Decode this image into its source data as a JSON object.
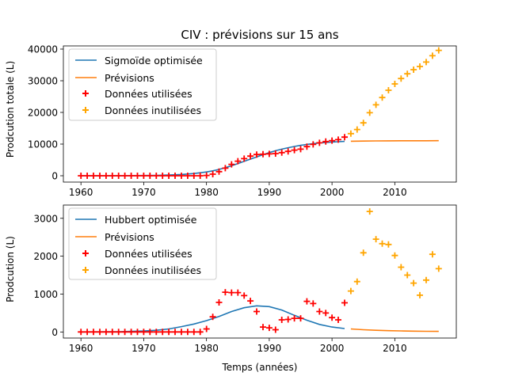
{
  "chart_data": [
    {
      "type": "line",
      "title": "CIV : prévisions sur 15 ans",
      "xlabel": "",
      "ylabel": "Prodcution totale (L)",
      "xlim": [
        1957.2,
        2019.8
      ],
      "ylim": [
        -2000,
        41000
      ],
      "xticks": [
        1960,
        1970,
        1980,
        1990,
        2000,
        2010
      ],
      "yticks": [
        0,
        10000,
        20000,
        30000,
        40000
      ],
      "legend_position": "upper-left",
      "colors": {
        "fit": "#1f77b4",
        "forecast": "#ff7f0e",
        "used": "#ff0000",
        "unused": "#ffa500"
      },
      "series": [
        {
          "name": "Sigmoïde optimisée",
          "kind": "line",
          "x": [
            1960,
            1962,
            1964,
            1966,
            1968,
            1970,
            1972,
            1974,
            1976,
            1978,
            1980,
            1981,
            1982,
            1983,
            1984,
            1985,
            1986,
            1987,
            1988,
            1989,
            1990,
            1991,
            1992,
            1993,
            1994,
            1995,
            1996,
            1997,
            1998,
            1999,
            2000,
            2001,
            2002
          ],
          "y": [
            0,
            5,
            10,
            20,
            40,
            70,
            130,
            230,
            400,
            700,
            1200,
            1550,
            2000,
            2550,
            3150,
            3850,
            4550,
            5250,
            5950,
            6650,
            7300,
            7900,
            8400,
            8850,
            9250,
            9600,
            9900,
            10150,
            10350,
            10500,
            10650,
            10750,
            10850
          ]
        },
        {
          "name": "Prévisions",
          "kind": "line",
          "x": [
            2003,
            2005,
            2007,
            2009,
            2011,
            2013,
            2015,
            2017
          ],
          "y": [
            10900,
            10950,
            11000,
            11020,
            11040,
            11050,
            11060,
            11070
          ]
        },
        {
          "name": "Données utilisées",
          "kind": "scatter",
          "x": [
            1960,
            1961,
            1962,
            1963,
            1964,
            1965,
            1966,
            1967,
            1968,
            1969,
            1970,
            1971,
            1972,
            1973,
            1974,
            1975,
            1976,
            1977,
            1978,
            1979,
            1980,
            1981,
            1982,
            1983,
            1984,
            1985,
            1986,
            1987,
            1988,
            1989,
            1990,
            1991,
            1992,
            1993,
            1994,
            1995,
            1996,
            1997,
            1998,
            1999,
            2000,
            2001,
            2002
          ],
          "y": [
            0,
            0,
            0,
            0,
            0,
            0,
            0,
            0,
            0,
            0,
            0,
            0,
            0,
            0,
            0,
            0,
            0,
            0,
            0,
            0,
            100,
            500,
            1300,
            2400,
            3600,
            4600,
            5400,
            6200,
            6700,
            6800,
            6900,
            7000,
            7300,
            7700,
            8100,
            8400,
            9200,
            9900,
            10400,
            10800,
            11100,
            11400,
            12200
          ]
        },
        {
          "name": "Données inutilisées",
          "kind": "scatter",
          "x": [
            2003,
            2004,
            2005,
            2006,
            2007,
            2008,
            2009,
            2010,
            2011,
            2012,
            2013,
            2014,
            2015,
            2016,
            2017
          ],
          "y": [
            13300,
            14600,
            16700,
            19900,
            22400,
            24700,
            27000,
            29000,
            30700,
            32200,
            33500,
            34500,
            35900,
            37900,
            39600
          ]
        }
      ]
    },
    {
      "type": "line",
      "title": "",
      "xlabel": "Temps (années)",
      "ylabel": "Prodcution (L)",
      "xlim": [
        1957.2,
        2019.8
      ],
      "ylim": [
        -160,
        3350
      ],
      "xticks": [
        1960,
        1970,
        1980,
        1990,
        2000,
        2010
      ],
      "yticks": [
        0,
        1000,
        2000,
        3000
      ],
      "legend_position": "upper-left",
      "colors": {
        "fit": "#1f77b4",
        "forecast": "#ff7f0e",
        "used": "#ff0000",
        "unused": "#ffa500"
      },
      "series": [
        {
          "name": "Hubbert optimisée",
          "kind": "line",
          "x": [
            1960,
            1962,
            1964,
            1966,
            1968,
            1970,
            1972,
            1974,
            1976,
            1978,
            1980,
            1982,
            1984,
            1986,
            1988,
            1990,
            1992,
            1994,
            1996,
            1998,
            2000,
            2002
          ],
          "y": [
            0,
            2,
            5,
            8,
            15,
            25,
            45,
            80,
            140,
            210,
            300,
            410,
            540,
            640,
            690,
            670,
            580,
            440,
            310,
            200,
            130,
            90
          ]
        },
        {
          "name": "Prévisions",
          "kind": "line",
          "x": [
            2003,
            2005,
            2007,
            2009,
            2011,
            2013,
            2015,
            2017
          ],
          "y": [
            80,
            60,
            45,
            35,
            28,
            22,
            18,
            15
          ]
        },
        {
          "name": "Données utilisées",
          "kind": "scatter",
          "x": [
            1960,
            1961,
            1962,
            1963,
            1964,
            1965,
            1966,
            1967,
            1968,
            1969,
            1970,
            1971,
            1972,
            1973,
            1974,
            1975,
            1976,
            1977,
            1978,
            1979,
            1980,
            1981,
            1982,
            1983,
            1984,
            1985,
            1986,
            1987,
            1988,
            1989,
            1990,
            1991,
            1992,
            1993,
            1994,
            1995,
            1996,
            1997,
            1998,
            1999,
            2000,
            2001,
            2002
          ],
          "y": [
            0,
            0,
            0,
            0,
            0,
            0,
            0,
            0,
            0,
            0,
            0,
            0,
            0,
            0,
            0,
            0,
            0,
            0,
            0,
            0,
            80,
            400,
            780,
            1050,
            1040,
            1040,
            960,
            820,
            540,
            130,
            110,
            60,
            320,
            330,
            360,
            360,
            810,
            750,
            540,
            500,
            380,
            320,
            770
          ]
        },
        {
          "name": "Données inutilisées",
          "kind": "scatter",
          "x": [
            2003,
            2004,
            2005,
            2006,
            2007,
            2008,
            2009,
            2010,
            2011,
            2012,
            2013,
            2014,
            2015,
            2016,
            2017
          ],
          "y": [
            1080,
            1330,
            2090,
            3180,
            2450,
            2330,
            2310,
            2020,
            1710,
            1500,
            1290,
            970,
            1370,
            2050,
            1670
          ]
        }
      ]
    }
  ]
}
